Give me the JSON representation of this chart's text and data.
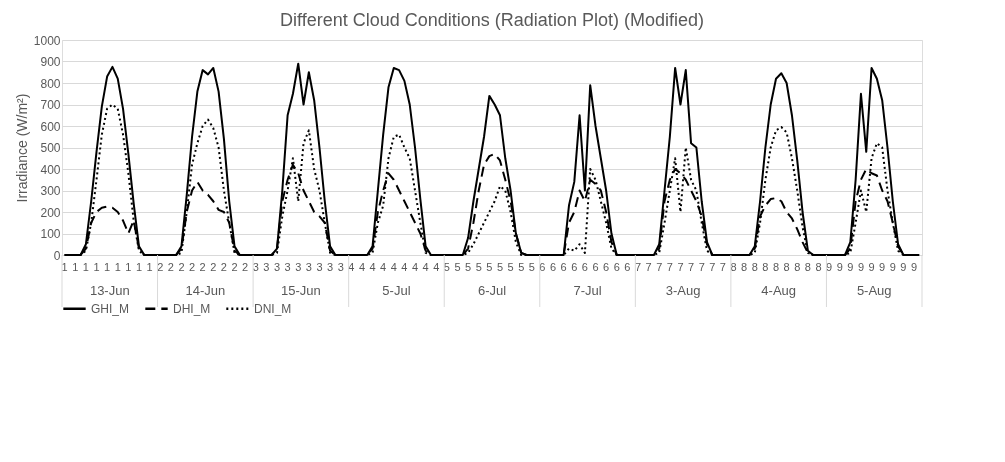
{
  "chart_data": {
    "type": "line",
    "title": "Different Cloud Conditions (Radiation Plot) (Modified)",
    "ylabel": "Irradiance (W/m²)",
    "categories": [
      "1",
      null,
      "1",
      null,
      "1",
      null,
      "1",
      null,
      "1",
      null,
      "1",
      null,
      "1",
      null,
      "1",
      null,
      "1",
      null,
      "2",
      null,
      "2",
      null,
      "2",
      null,
      "2",
      null,
      "2",
      null,
      "2",
      null,
      "2",
      null,
      "2",
      null,
      "2",
      null,
      "3",
      null,
      "3",
      null,
      "3",
      null,
      "3",
      null,
      "3",
      null,
      "3",
      null,
      "3",
      null,
      "3",
      null,
      "3",
      null,
      "4",
      null,
      "4",
      null,
      "4",
      null,
      "4",
      null,
      "4",
      null,
      "4",
      null,
      "4",
      null,
      "4",
      null,
      "4",
      null,
      "5",
      null,
      "5",
      null,
      "5",
      null,
      "5",
      null,
      "5",
      null,
      "5",
      null,
      "5",
      null,
      "5",
      null,
      "5",
      null,
      "6",
      null,
      "6",
      null,
      "6",
      null,
      "6",
      null,
      "6",
      null,
      "6",
      null,
      "6",
      null,
      "6",
      null,
      "6",
      null,
      "7",
      null,
      "7",
      null,
      "7",
      null,
      "7",
      null,
      "7",
      null,
      "7",
      null,
      "7",
      null,
      "7",
      null,
      "7",
      null,
      "8",
      null,
      "8",
      null,
      "8",
      null,
      "8",
      null,
      "8",
      null,
      "8",
      null,
      "8",
      null,
      "8",
      null,
      "8",
      null,
      "9",
      null,
      "9",
      null,
      "9",
      null,
      "9",
      null,
      "9",
      null,
      "9",
      null,
      "9",
      null,
      "9",
      null,
      "9",
      null
    ],
    "series": [
      {
        "name": "GHI_M",
        "color": "#000000",
        "line_style": "solid",
        "values": [
          0,
          0,
          0,
          0,
          50,
          250,
          480,
          690,
          830,
          875,
          820,
          680,
          470,
          240,
          40,
          0,
          0,
          0,
          0,
          0,
          0,
          0,
          40,
          280,
          550,
          760,
          860,
          840,
          870,
          760,
          540,
          250,
          40,
          0,
          0,
          0,
          0,
          0,
          0,
          0,
          30,
          300,
          650,
          750,
          890,
          700,
          850,
          720,
          500,
          250,
          40,
          0,
          0,
          0,
          0,
          0,
          0,
          0,
          40,
          300,
          560,
          780,
          870,
          860,
          810,
          700,
          500,
          260,
          40,
          0,
          0,
          0,
          0,
          0,
          0,
          0,
          80,
          250,
          400,
          550,
          740,
          700,
          650,
          450,
          300,
          100,
          10,
          0,
          0,
          0,
          0,
          0,
          0,
          0,
          0,
          230,
          340,
          650,
          300,
          790,
          600,
          450,
          300,
          100,
          0,
          0,
          0,
          0,
          0,
          0,
          0,
          0,
          50,
          300,
          550,
          870,
          700,
          860,
          520,
          500,
          250,
          60,
          0,
          0,
          0,
          0,
          0,
          0,
          0,
          0,
          40,
          250,
          500,
          700,
          820,
          845,
          800,
          650,
          440,
          200,
          20,
          0,
          0,
          0,
          0,
          0,
          0,
          0,
          60,
          350,
          750,
          480,
          870,
          820,
          720,
          500,
          250,
          50,
          0,
          0,
          0,
          0
        ]
      },
      {
        "name": "DHI_M",
        "color": "#000000",
        "line_style": "dashed",
        "values": [
          0,
          0,
          0,
          0,
          30,
          150,
          200,
          220,
          225,
          220,
          200,
          160,
          100,
          160,
          30,
          0,
          0,
          0,
          0,
          0,
          0,
          0,
          30,
          200,
          300,
          340,
          300,
          280,
          250,
          210,
          200,
          150,
          20,
          0,
          0,
          0,
          0,
          0,
          0,
          0,
          30,
          250,
          350,
          420,
          380,
          300,
          250,
          200,
          180,
          150,
          20,
          0,
          0,
          0,
          0,
          0,
          0,
          0,
          30,
          200,
          300,
          380,
          350,
          300,
          250,
          200,
          150,
          100,
          20,
          0,
          0,
          0,
          0,
          0,
          0,
          0,
          30,
          150,
          300,
          420,
          460,
          470,
          440,
          350,
          250,
          100,
          10,
          0,
          0,
          0,
          0,
          0,
          0,
          0,
          0,
          150,
          200,
          300,
          250,
          350,
          330,
          300,
          200,
          60,
          0,
          0,
          0,
          0,
          0,
          0,
          0,
          0,
          30,
          250,
          350,
          400,
          380,
          350,
          300,
          250,
          180,
          50,
          0,
          0,
          0,
          0,
          0,
          0,
          0,
          0,
          30,
          180,
          230,
          260,
          265,
          250,
          200,
          170,
          120,
          60,
          10,
          0,
          0,
          0,
          0,
          0,
          0,
          0,
          30,
          250,
          350,
          400,
          380,
          370,
          300,
          250,
          150,
          40,
          0,
          0,
          0,
          0
        ]
      },
      {
        "name": "DNI_M",
        "color": "#000000",
        "line_style": "dotted",
        "values": [
          0,
          0,
          0,
          0,
          20,
          150,
          350,
          560,
          680,
          700,
          680,
          560,
          380,
          160,
          20,
          0,
          0,
          0,
          0,
          0,
          0,
          0,
          10,
          200,
          420,
          520,
          600,
          630,
          590,
          500,
          300,
          150,
          10,
          0,
          0,
          0,
          0,
          0,
          0,
          0,
          10,
          180,
          300,
          450,
          250,
          520,
          580,
          400,
          300,
          150,
          10,
          0,
          0,
          0,
          0,
          0,
          0,
          0,
          10,
          150,
          230,
          450,
          550,
          560,
          500,
          450,
          300,
          150,
          10,
          0,
          0,
          0,
          0,
          0,
          0,
          0,
          10,
          50,
          100,
          150,
          200,
          250,
          320,
          300,
          200,
          60,
          0,
          0,
          0,
          0,
          0,
          0,
          0,
          0,
          0,
          30,
          20,
          50,
          10,
          400,
          350,
          250,
          150,
          30,
          0,
          0,
          0,
          0,
          0,
          0,
          0,
          0,
          10,
          150,
          300,
          450,
          200,
          500,
          350,
          300,
          150,
          20,
          0,
          0,
          0,
          0,
          0,
          0,
          0,
          0,
          10,
          150,
          350,
          500,
          580,
          595,
          570,
          450,
          300,
          130,
          10,
          0,
          0,
          0,
          0,
          0,
          0,
          0,
          10,
          150,
          300,
          200,
          450,
          520,
          500,
          300,
          150,
          20,
          0,
          0,
          0,
          0
        ]
      }
    ],
    "annotations": [
      "13-Jun",
      "14-Jun",
      "15-Jun",
      "5-Jul",
      "6-Jul",
      "7-Jul",
      "3-Aug",
      "4-Aug",
      "5-Aug"
    ],
    "ylim": [
      0,
      1000
    ],
    "yticks": [
      0,
      100,
      200,
      300,
      400,
      500,
      600,
      700,
      800,
      900,
      1000
    ],
    "grid": "y",
    "legend": "bottom"
  }
}
